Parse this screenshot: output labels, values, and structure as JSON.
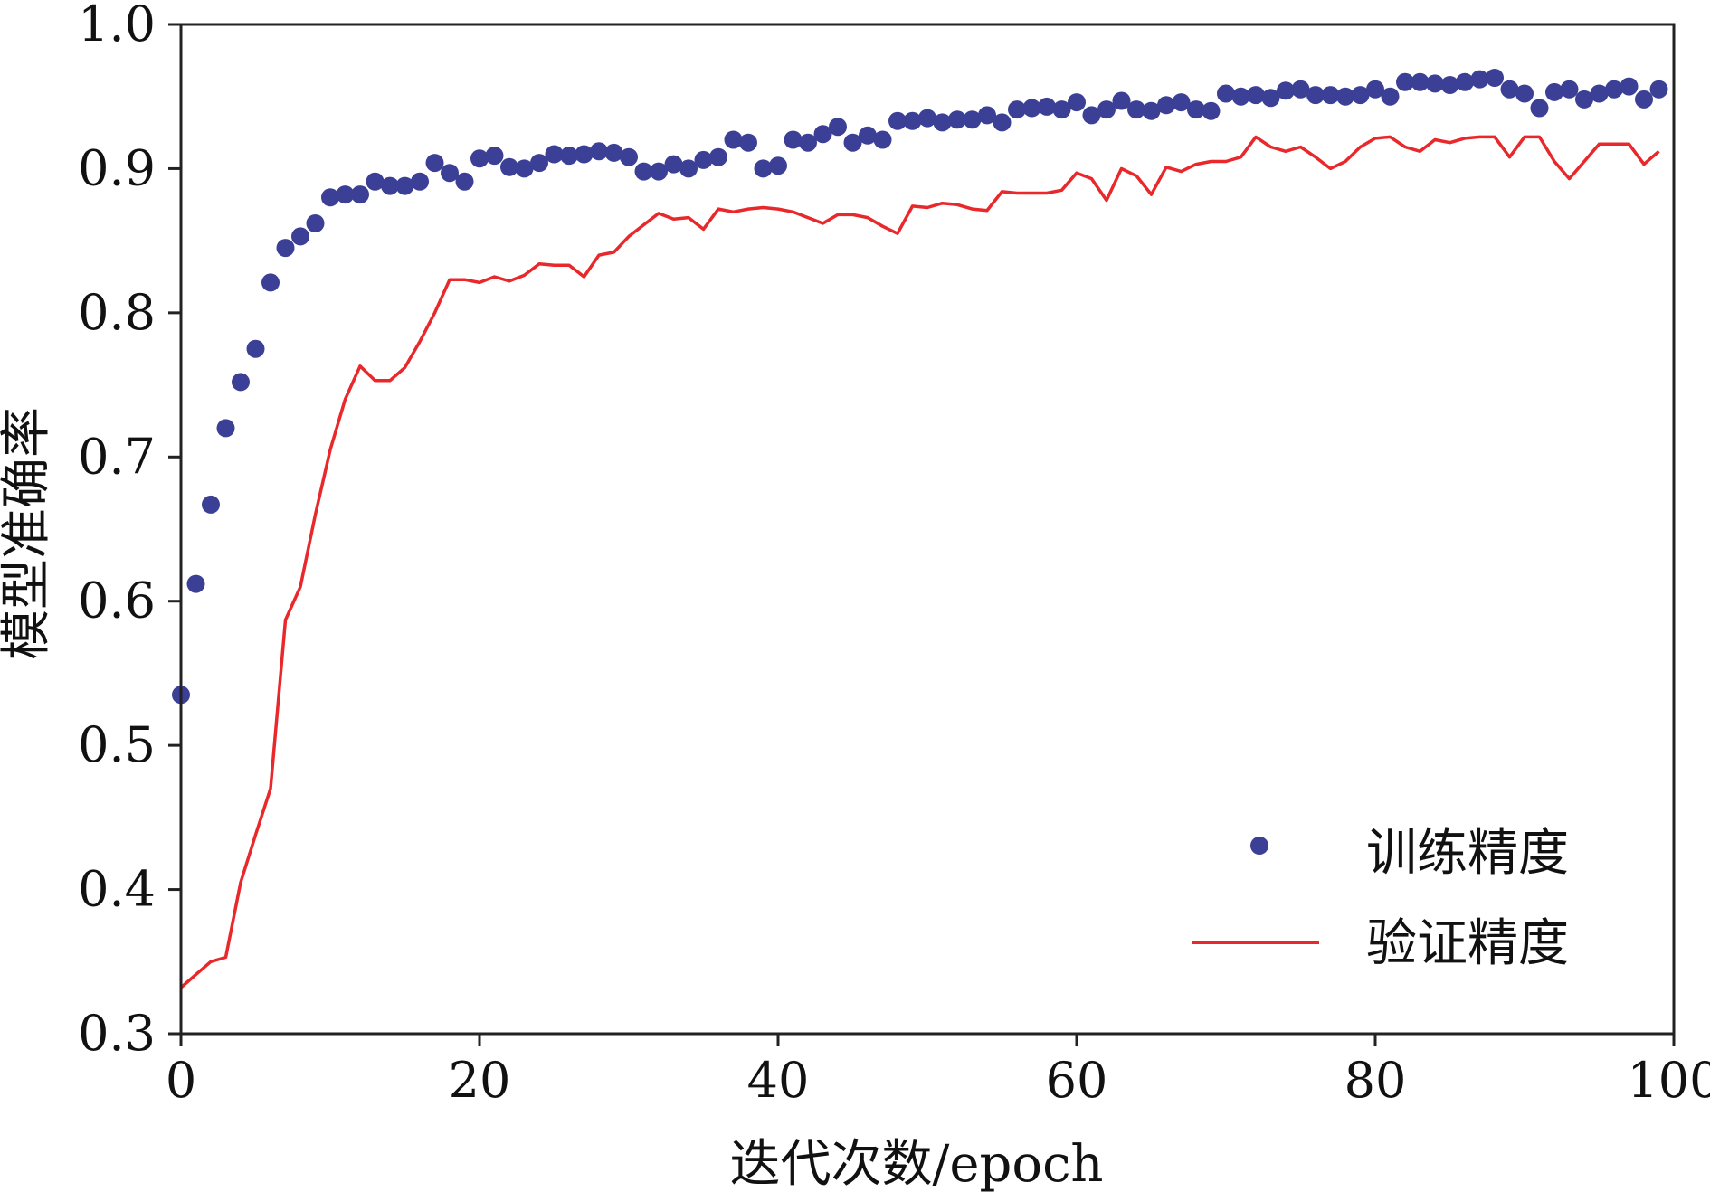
{
  "chart_data": {
    "type": "line",
    "title": "",
    "xlabel": "迭代次数/epoch",
    "ylabel": "模型准确率",
    "xlim": [
      0,
      100
    ],
    "ylim": [
      0.3,
      1.0
    ],
    "xticks": [
      "0",
      "20",
      "40",
      "60",
      "80",
      "100"
    ],
    "yticks": [
      "0.3",
      "0.4",
      "0.5",
      "0.6",
      "0.7",
      "0.8",
      "0.9",
      "1.0"
    ],
    "grid": false,
    "legend_position": "bottom-right",
    "series": [
      {
        "name": "训练精度",
        "style": "scatter",
        "color": "#3b3f95",
        "x": [
          0,
          1,
          2,
          3,
          4,
          5,
          6,
          7,
          8,
          9,
          10,
          11,
          12,
          13,
          14,
          15,
          16,
          17,
          18,
          19,
          20,
          21,
          22,
          23,
          24,
          25,
          26,
          27,
          28,
          29,
          30,
          31,
          32,
          33,
          34,
          35,
          36,
          37,
          38,
          39,
          40,
          41,
          42,
          43,
          44,
          45,
          46,
          47,
          48,
          49,
          50,
          51,
          52,
          53,
          54,
          55,
          56,
          57,
          58,
          59,
          60,
          61,
          62,
          63,
          64,
          65,
          66,
          67,
          68,
          69,
          70,
          71,
          72,
          73,
          74,
          75,
          76,
          77,
          78,
          79,
          80,
          81,
          82,
          83,
          84,
          85,
          86,
          87,
          88,
          89,
          90,
          91,
          92,
          93,
          94,
          95,
          96,
          97,
          98,
          99
        ],
        "values": [
          0.535,
          0.612,
          0.667,
          0.72,
          0.752,
          0.775,
          0.821,
          0.845,
          0.853,
          0.862,
          0.88,
          0.882,
          0.882,
          0.891,
          0.888,
          0.888,
          0.891,
          0.904,
          0.897,
          0.891,
          0.907,
          0.909,
          0.901,
          0.9,
          0.904,
          0.91,
          0.909,
          0.91,
          0.912,
          0.911,
          0.908,
          0.898,
          0.898,
          0.903,
          0.9,
          0.906,
          0.908,
          0.92,
          0.918,
          0.9,
          0.902,
          0.92,
          0.918,
          0.924,
          0.929,
          0.918,
          0.923,
          0.92,
          0.933,
          0.933,
          0.935,
          0.932,
          0.934,
          0.934,
          0.937,
          0.932,
          0.941,
          0.942,
          0.943,
          0.941,
          0.946,
          0.937,
          0.941,
          0.947,
          0.941,
          0.94,
          0.944,
          0.946,
          0.941,
          0.94,
          0.952,
          0.95,
          0.951,
          0.949,
          0.954,
          0.955,
          0.951,
          0.951,
          0.95,
          0.951,
          0.955,
          0.95,
          0.96,
          0.96,
          0.959,
          0.958,
          0.96,
          0.962,
          0.963,
          0.955,
          0.952,
          0.942,
          0.953,
          0.955,
          0.948,
          0.952,
          0.955,
          0.957,
          0.948,
          0.955
        ]
      },
      {
        "name": "验证精度",
        "style": "line",
        "color": "#e8282a",
        "x": [
          0,
          1,
          2,
          3,
          4,
          5,
          6,
          7,
          8,
          9,
          10,
          11,
          12,
          13,
          14,
          15,
          16,
          17,
          18,
          19,
          20,
          21,
          22,
          23,
          24,
          25,
          26,
          27,
          28,
          29,
          30,
          31,
          32,
          33,
          34,
          35,
          36,
          37,
          38,
          39,
          40,
          41,
          42,
          43,
          44,
          45,
          46,
          47,
          48,
          49,
          50,
          51,
          52,
          53,
          54,
          55,
          56,
          57,
          58,
          59,
          60,
          61,
          62,
          63,
          64,
          65,
          66,
          67,
          68,
          69,
          70,
          71,
          72,
          73,
          74,
          75,
          76,
          77,
          78,
          79,
          80,
          81,
          82,
          83,
          84,
          85,
          86,
          87,
          88,
          89,
          90,
          91,
          92,
          93,
          94,
          95,
          96,
          97,
          98,
          99
        ],
        "values": [
          0.332,
          0.341,
          0.35,
          0.353,
          0.405,
          0.438,
          0.47,
          0.587,
          0.61,
          0.66,
          0.705,
          0.74,
          0.763,
          0.753,
          0.753,
          0.762,
          0.78,
          0.8,
          0.823,
          0.823,
          0.821,
          0.825,
          0.822,
          0.826,
          0.834,
          0.833,
          0.833,
          0.825,
          0.84,
          0.842,
          0.853,
          0.861,
          0.869,
          0.865,
          0.866,
          0.858,
          0.872,
          0.87,
          0.872,
          0.873,
          0.872,
          0.87,
          0.866,
          0.862,
          0.868,
          0.868,
          0.866,
          0.86,
          0.855,
          0.874,
          0.873,
          0.876,
          0.875,
          0.872,
          0.871,
          0.884,
          0.883,
          0.883,
          0.883,
          0.885,
          0.897,
          0.893,
          0.878,
          0.9,
          0.895,
          0.882,
          0.901,
          0.898,
          0.903,
          0.905,
          0.905,
          0.908,
          0.922,
          0.915,
          0.912,
          0.915,
          0.908,
          0.9,
          0.905,
          0.915,
          0.921,
          0.922,
          0.915,
          0.912,
          0.92,
          0.918,
          0.921,
          0.922,
          0.922,
          0.908,
          0.922,
          0.922,
          0.905,
          0.893,
          0.905,
          0.917,
          0.917,
          0.917,
          0.903,
          0.912
        ]
      }
    ]
  }
}
